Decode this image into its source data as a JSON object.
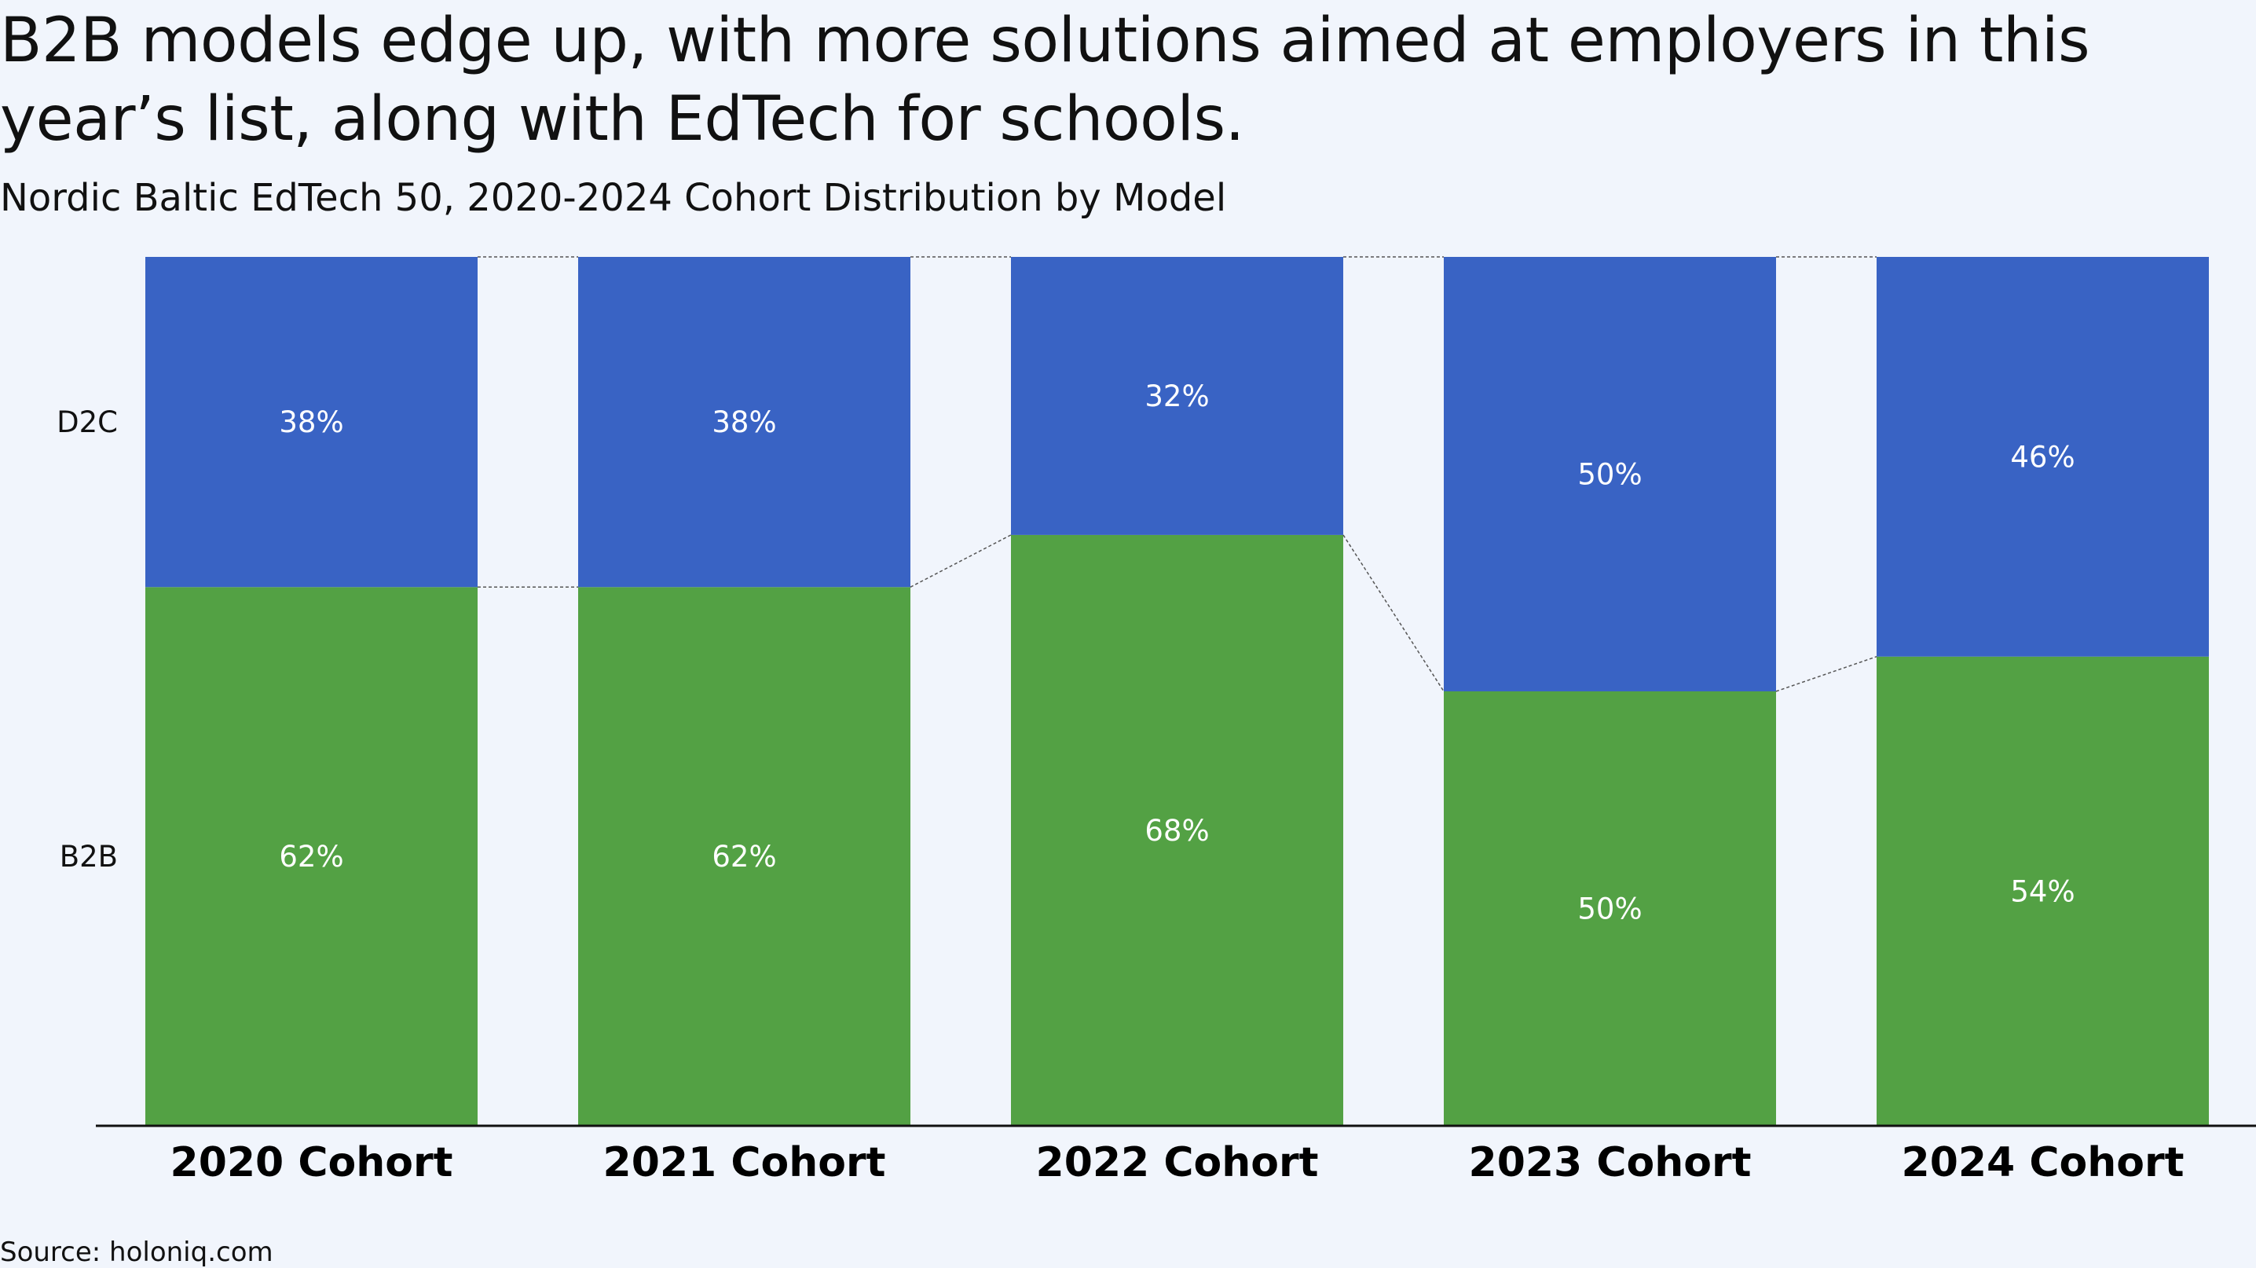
{
  "header": {
    "title": "B2B models edge up, with more solutions aimed at employers in this year’s list, along with EdTech for schools.",
    "subtitle": "Nordic Baltic EdTech 50, 2020-2024 Cohort Distribution by Model"
  },
  "footer": {
    "source": "Source: holoniq.com"
  },
  "colors": {
    "D2C": "#3963c4",
    "B2B": "#53a144",
    "background": "#f1f5fc",
    "connector": "#555555"
  },
  "chart_data": {
    "type": "bar",
    "stacked": true,
    "normalized_percent": true,
    "categories": [
      "2020 Cohort",
      "2021 Cohort",
      "2022 Cohort",
      "2023 Cohort",
      "2024 Cohort"
    ],
    "series": [
      {
        "name": "B2B",
        "values": [
          62,
          62,
          68,
          50,
          54
        ],
        "labels": [
          "62%",
          "62%",
          "68%",
          "50%",
          "54%"
        ]
      },
      {
        "name": "D2C",
        "values": [
          38,
          38,
          32,
          50,
          46
        ],
        "labels": [
          "38%",
          "38%",
          "32%",
          "50%",
          "46%"
        ]
      }
    ],
    "ylim": [
      0,
      100
    ],
    "legend_placement": "left (series labels beside first bar)",
    "grid": false,
    "connector_lines": true
  }
}
